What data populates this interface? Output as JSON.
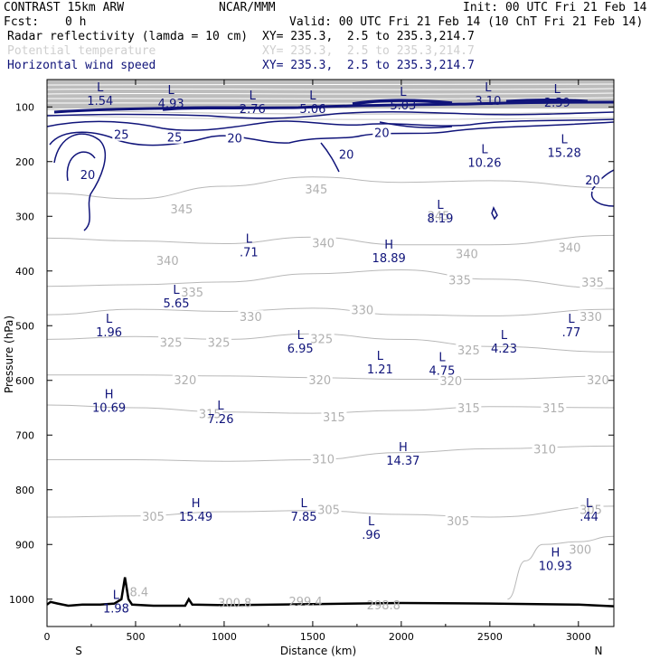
{
  "header": {
    "model": "CONTRAST 15km ARW",
    "org": "NCAR/MMM",
    "init": "Init: 00 UTC Fri 21 Feb 14",
    "fcst_label": "Fcst:",
    "fcst_value": "0 h",
    "valid": "Valid: 00 UTC Fri 21 Feb 14 (10 ChT Fri 21 Feb 14)",
    "fields": [
      {
        "name": "Radar reflectivity (lamda = 10 cm)",
        "xy": "XY= 235.3,  2.5 to 235.3,214.7"
      },
      {
        "name": "Potential temperature",
        "xy": "XY= 235.3,  2.5 to 235.3,214.7"
      },
      {
        "name": "Horizontal wind speed",
        "xy": "XY= 235.3,  2.5 to 235.3,214.7"
      }
    ]
  },
  "colors": {
    "wind": "#10147a",
    "theta": "#b8b8b8",
    "terrain": "#000000"
  },
  "chart_data": {
    "type": "cross-section",
    "title": "CONTRAST 15km ARW vertical cross-section",
    "xlabel": "Distance (km)",
    "ylabel": "Pressure (hPa)",
    "xlim": [
      0,
      3200
    ],
    "ylim": [
      1050,
      50
    ],
    "x_ticks": [
      0,
      500,
      1000,
      1500,
      2000,
      2500,
      3000
    ],
    "y_ticks": [
      100,
      200,
      300,
      400,
      500,
      600,
      700,
      800,
      900,
      1000
    ],
    "end_labels": {
      "left": "S",
      "right": "N"
    },
    "theta_isentropes": [
      {
        "value": 345,
        "points": [
          [
            0,
            258
          ],
          [
            500,
            268
          ],
          [
            1000,
            245
          ],
          [
            1500,
            228
          ],
          [
            2000,
            238
          ],
          [
            2500,
            235
          ],
          [
            3200,
            248
          ]
        ],
        "labels": [
          [
            760,
            288
          ],
          [
            1520,
            252
          ],
          [
            2210,
            300
          ]
        ]
      },
      {
        "value": 340,
        "points": [
          [
            0,
            340
          ],
          [
            500,
            345
          ],
          [
            1000,
            350
          ],
          [
            1500,
            338
          ],
          [
            2000,
            352
          ],
          [
            2500,
            352
          ],
          [
            3200,
            335
          ]
        ],
        "labels": [
          [
            680,
            382
          ],
          [
            1560,
            350
          ],
          [
            2370,
            370
          ],
          [
            2950,
            358
          ]
        ]
      },
      {
        "value": 335,
        "points": [
          [
            0,
            428
          ],
          [
            500,
            425
          ],
          [
            1000,
            420
          ],
          [
            1500,
            405
          ],
          [
            2000,
            398
          ],
          [
            2500,
            415
          ],
          [
            3200,
            432
          ]
        ],
        "labels": [
          [
            820,
            440
          ],
          [
            2330,
            418
          ],
          [
            3080,
            422
          ]
        ]
      },
      {
        "value": 330,
        "points": [
          [
            0,
            480
          ],
          [
            500,
            470
          ],
          [
            1000,
            474
          ],
          [
            1500,
            468
          ],
          [
            2000,
            480
          ],
          [
            2500,
            482
          ],
          [
            3200,
            470
          ]
        ],
        "labels": [
          [
            1150,
            485
          ],
          [
            1780,
            472
          ],
          [
            3070,
            485
          ]
        ]
      },
      {
        "value": 325,
        "points": [
          [
            0,
            525
          ],
          [
            500,
            520
          ],
          [
            1000,
            525
          ],
          [
            1500,
            515
          ],
          [
            2000,
            525
          ],
          [
            2500,
            538
          ],
          [
            3200,
            548
          ]
        ],
        "labels": [
          [
            700,
            532
          ],
          [
            970,
            532
          ],
          [
            1550,
            525
          ],
          [
            2380,
            546
          ]
        ]
      },
      {
        "value": 320,
        "points": [
          [
            0,
            590
          ],
          [
            500,
            590
          ],
          [
            1000,
            592
          ],
          [
            1500,
            595
          ],
          [
            2000,
            598
          ],
          [
            2500,
            598
          ],
          [
            3200,
            592
          ]
        ],
        "labels": [
          [
            780,
            600
          ],
          [
            1540,
            600
          ],
          [
            2280,
            602
          ],
          [
            3110,
            600
          ]
        ]
      },
      {
        "value": 315,
        "points": [
          [
            0,
            645
          ],
          [
            500,
            650
          ],
          [
            1000,
            658
          ],
          [
            1500,
            660
          ],
          [
            2000,
            655
          ],
          [
            2500,
            648
          ],
          [
            3200,
            650
          ]
        ],
        "labels": [
          [
            920,
            662
          ],
          [
            1620,
            668
          ],
          [
            2380,
            652
          ],
          [
            2860,
            652
          ]
        ]
      },
      {
        "value": 310,
        "points": [
          [
            0,
            745
          ],
          [
            500,
            745
          ],
          [
            1000,
            748
          ],
          [
            1500,
            745
          ],
          [
            2000,
            732
          ],
          [
            2500,
            725
          ],
          [
            3200,
            720
          ]
        ],
        "labels": [
          [
            1560,
            745
          ],
          [
            2810,
            727
          ]
        ]
      },
      {
        "value": 305,
        "points": [
          [
            0,
            850
          ],
          [
            500,
            848
          ],
          [
            1000,
            840
          ],
          [
            1500,
            838
          ],
          [
            2000,
            845
          ],
          [
            2500,
            850
          ],
          [
            3200,
            830
          ]
        ],
        "labels": [
          [
            600,
            850
          ],
          [
            1590,
            838
          ],
          [
            2320,
            858
          ],
          [
            3070,
            838
          ]
        ]
      },
      {
        "value": 300,
        "points": [
          [
            2600,
            1000
          ],
          [
            2700,
            930
          ],
          [
            2800,
            900
          ],
          [
            3000,
            895
          ],
          [
            3200,
            885
          ]
        ],
        "labels": [
          [
            3010,
            910
          ]
        ]
      }
    ],
    "wind_contours": [
      {
        "value": 20,
        "labels": [
          [
            230,
            225
          ],
          [
            1060,
            158
          ],
          [
            1690,
            188
          ],
          [
            1890,
            148
          ],
          [
            3080,
            235
          ]
        ]
      },
      {
        "value": 25,
        "labels": [
          [
            420,
            152
          ],
          [
            720,
            157
          ]
        ]
      }
    ],
    "terrain": [
      [
        0,
        1010
      ],
      [
        20,
        1005
      ],
      [
        60,
        1008
      ],
      [
        120,
        1012
      ],
      [
        200,
        1010
      ],
      [
        300,
        1010
      ],
      [
        380,
        1008
      ],
      [
        420,
        1000
      ],
      [
        440,
        960
      ],
      [
        460,
        1000
      ],
      [
        480,
        1010
      ],
      [
        600,
        1012
      ],
      [
        780,
        1012
      ],
      [
        800,
        1000
      ],
      [
        820,
        1010
      ],
      [
        1000,
        1011
      ],
      [
        1500,
        1009
      ],
      [
        2000,
        1007
      ],
      [
        2500,
        1008
      ],
      [
        3000,
        1010
      ],
      [
        3200,
        1013
      ]
    ],
    "extrema": [
      {
        "type": "L",
        "value": "1.54",
        "x": 300,
        "p": 75
      },
      {
        "type": "L",
        "value": "4.93",
        "x": 700,
        "p": 80
      },
      {
        "type": "L",
        "value": "2.76",
        "x": 1160,
        "p": 90
      },
      {
        "type": "L",
        "value": "5.06",
        "x": 1500,
        "p": 90
      },
      {
        "type": "L",
        "value": "5.03",
        "x": 2010,
        "p": 83
      },
      {
        "type": "L",
        "value": "3.10",
        "x": 2490,
        "p": 75
      },
      {
        "type": "L",
        "value": "2.39",
        "x": 2880,
        "p": 78
      },
      {
        "type": "L",
        "value": "10.26",
        "x": 2470,
        "p": 188
      },
      {
        "type": "L",
        "value": "15.28",
        "x": 2920,
        "p": 170
      },
      {
        "type": "L",
        "value": "8.19",
        "x": 2220,
        "p": 290
      },
      {
        "type": "L",
        "value": ".71",
        "x": 1140,
        "p": 352
      },
      {
        "type": "H",
        "value": "18.89",
        "x": 1930,
        "p": 362
      },
      {
        "type": "L",
        "value": "5.65",
        "x": 730,
        "p": 445
      },
      {
        "type": "L",
        "value": "1.96",
        "x": 350,
        "p": 498
      },
      {
        "type": "L",
        "value": ".77",
        "x": 2960,
        "p": 498
      },
      {
        "type": "L",
        "value": "6.95",
        "x": 1430,
        "p": 528
      },
      {
        "type": "L",
        "value": "4.23",
        "x": 2580,
        "p": 528
      },
      {
        "type": "L",
        "value": "1.21",
        "x": 1880,
        "p": 566
      },
      {
        "type": "L",
        "value": "4.75",
        "x": 2230,
        "p": 568
      },
      {
        "type": "H",
        "value": "10.69",
        "x": 350,
        "p": 636
      },
      {
        "type": "L",
        "value": "7.26",
        "x": 980,
        "p": 657
      },
      {
        "type": "H",
        "value": "14.37",
        "x": 2010,
        "p": 733
      },
      {
        "type": "H",
        "value": "15.49",
        "x": 840,
        "p": 835
      },
      {
        "type": "L",
        "value": "7.85",
        "x": 1450,
        "p": 835
      },
      {
        "type": "L",
        "value": ".44",
        "x": 3060,
        "p": 835
      },
      {
        "type": "L",
        "value": ".96",
        "x": 1830,
        "p": 868
      },
      {
        "type": "H",
        "value": "10.93",
        "x": 2870,
        "p": 925
      },
      {
        "type": "L",
        "value": "1.98",
        "x": 390,
        "p": 1003
      }
    ],
    "faint_labels": [
      {
        "text": "300.8",
        "x": 1060,
        "p": 1008
      },
      {
        "text": "299.4",
        "x": 1460,
        "p": 1005
      },
      {
        "text": "298.8",
        "x": 1900,
        "p": 1012
      },
      {
        "text": "8.4",
        "x": 520,
        "p": 988
      }
    ]
  }
}
